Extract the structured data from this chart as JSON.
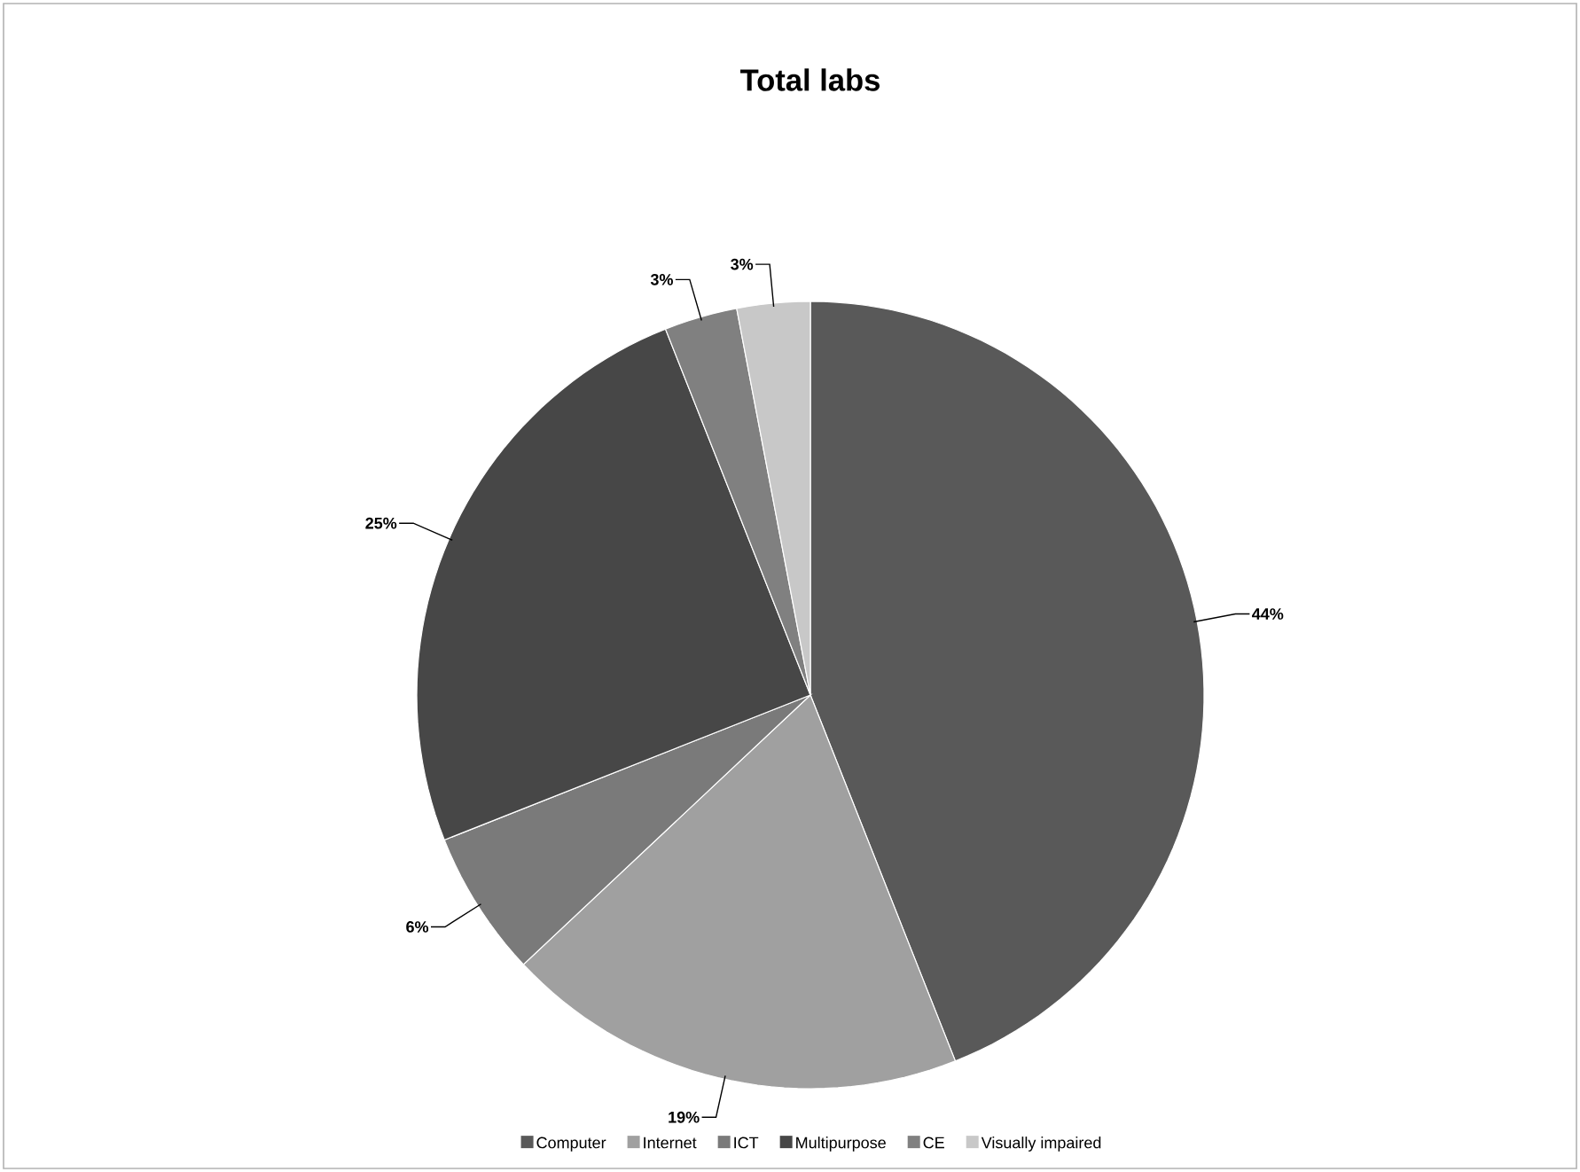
{
  "chart_data": {
    "type": "pie",
    "title": "Total labs",
    "categories": [
      "Computer",
      "Internet",
      "ICT",
      "Multipurpose",
      "CE",
      "Visually impaired"
    ],
    "values": [
      44,
      19,
      6,
      25,
      3,
      3
    ],
    "colors": [
      "#595959",
      "#a0a0a0",
      "#7a7a7a",
      "#474747",
      "#808080",
      "#c8c8c8"
    ],
    "value_labels": [
      "44%",
      "19%",
      "6%",
      "25%",
      "3%",
      "3%"
    ],
    "legend": "bottom"
  }
}
